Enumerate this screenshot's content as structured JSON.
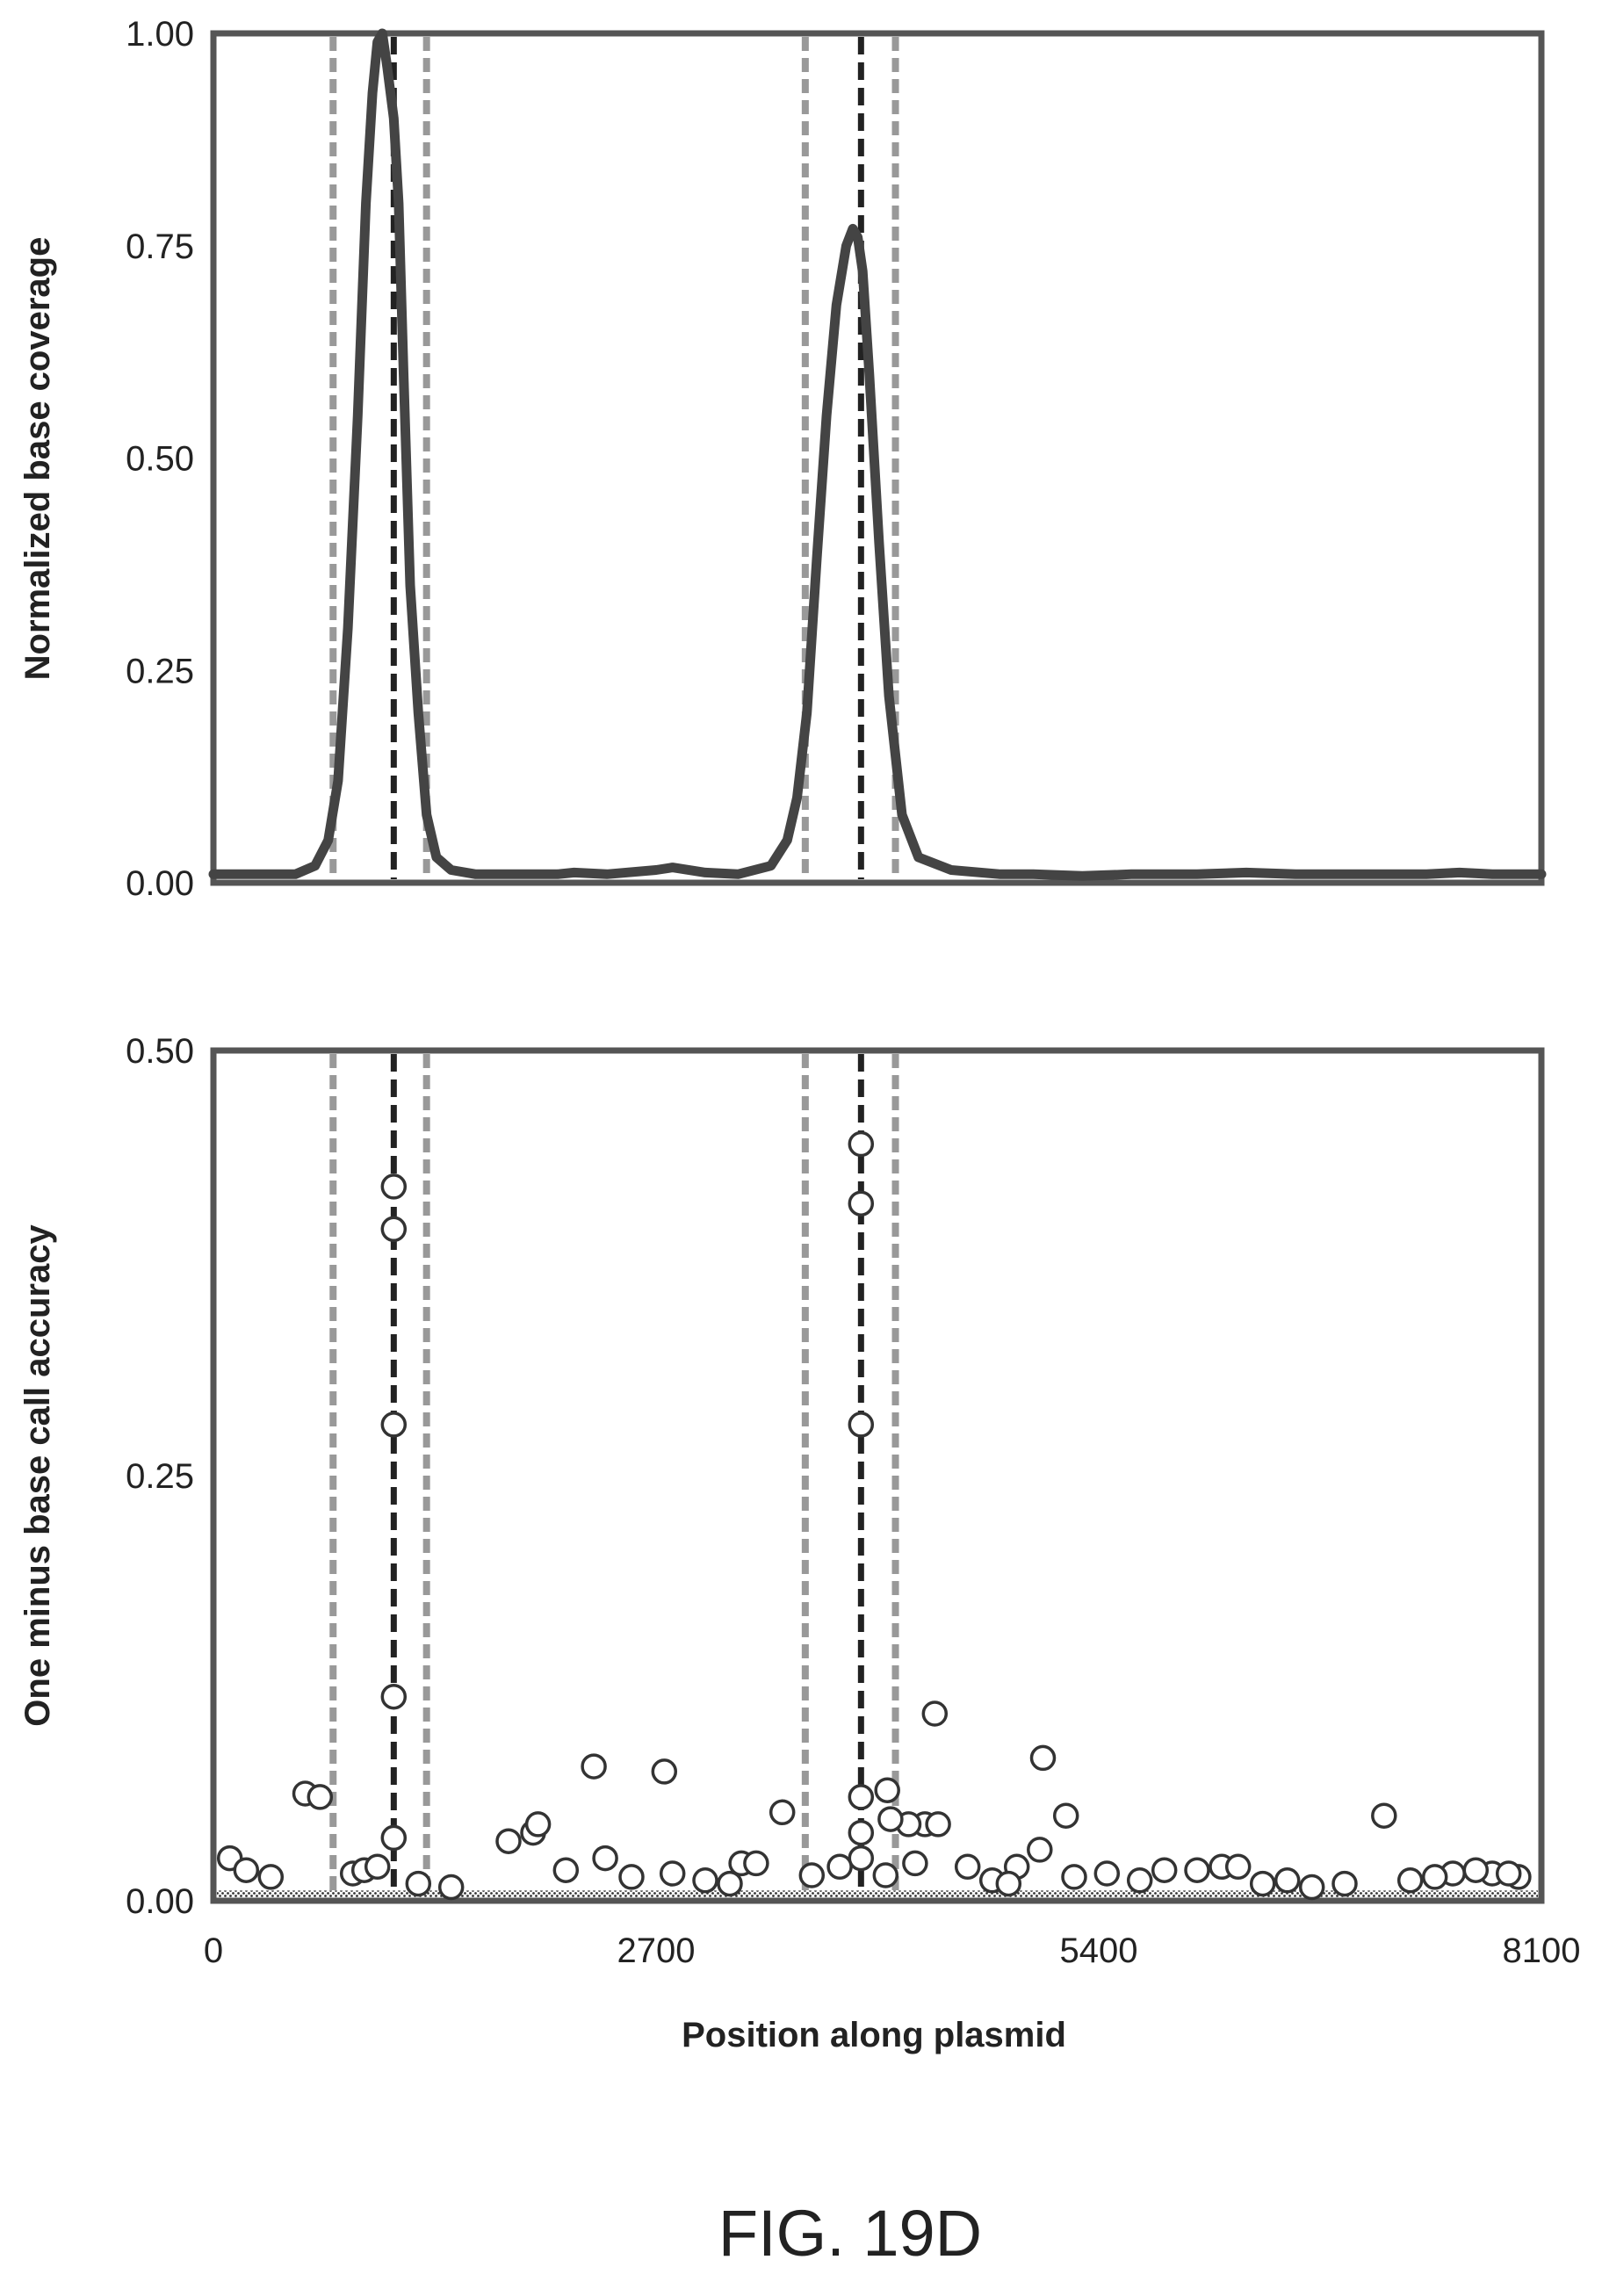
{
  "figure": {
    "caption": "FIG. 19D"
  },
  "chart_data": [
    {
      "type": "line",
      "xlabel": "",
      "ylabel": "Normalized base coverage",
      "xlim": [
        0,
        8100
      ],
      "ylim": [
        0,
        1.0
      ],
      "yticks": [
        "0.00",
        "0.25",
        "0.50",
        "0.75",
        "1.00"
      ],
      "grid": false,
      "markers": {
        "outer_boundaries": [
          730,
          1300,
          3610,
          4160
        ],
        "inner_boundaries": [
          1100,
          3950
        ]
      },
      "series": [
        {
          "x": [
            0,
            300,
            500,
            620,
            700,
            760,
            820,
            880,
            930,
            970,
            1000,
            1030,
            1060,
            1100,
            1130,
            1160,
            1200,
            1250,
            1300,
            1360,
            1450,
            1600,
            1800,
            2100,
            2200,
            2400,
            2700,
            2800,
            3000,
            3200,
            3400,
            3500,
            3560,
            3620,
            3680,
            3740,
            3800,
            3860,
            3900,
            3930,
            3960,
            4000,
            4060,
            4120,
            4200,
            4300,
            4500,
            4800,
            5000,
            5300,
            5600,
            6000,
            6300,
            6600,
            7000,
            7400,
            7600,
            7800,
            8100
          ],
          "y": [
            0.01,
            0.01,
            0.01,
            0.02,
            0.05,
            0.12,
            0.3,
            0.55,
            0.8,
            0.93,
            0.99,
            1.0,
            0.96,
            0.9,
            0.8,
            0.6,
            0.35,
            0.2,
            0.08,
            0.03,
            0.015,
            0.01,
            0.01,
            0.01,
            0.012,
            0.01,
            0.015,
            0.018,
            0.012,
            0.01,
            0.02,
            0.05,
            0.1,
            0.2,
            0.38,
            0.55,
            0.68,
            0.75,
            0.77,
            0.76,
            0.72,
            0.6,
            0.4,
            0.22,
            0.08,
            0.03,
            0.015,
            0.01,
            0.01,
            0.008,
            0.01,
            0.01,
            0.012,
            0.01,
            0.01,
            0.01,
            0.012,
            0.01,
            0.01
          ]
        }
      ]
    },
    {
      "type": "scatter",
      "xlabel": "Position along plasmid",
      "ylabel": "One minus base call accuracy",
      "xlim": [
        0,
        8100
      ],
      "ylim": [
        0,
        0.5
      ],
      "xticks": [
        "0",
        "2700",
        "5400",
        "8100"
      ],
      "yticks": [
        "0.00",
        "0.25",
        "0.50"
      ],
      "grid": false,
      "markers": {
        "outer_boundaries": [
          730,
          1300,
          3610,
          4160
        ],
        "inner_boundaries": [
          1100,
          3950
        ]
      },
      "series": [
        {
          "x": [
            1100,
            1100,
            1100,
            1100,
            1100,
            3950,
            3950,
            3950,
            3950,
            3950,
            3950,
            4400,
            5060,
            2320,
            2750,
            560,
            650,
            3470,
            4110,
            4340,
            4240,
            4130,
            4420,
            5200,
            5040,
            1800,
            1950,
            1980,
            2390,
            3220,
            3310,
            7140,
            4280,
            4100,
            4900,
            6150,
            6250,
            5800,
            6000,
            7560,
            7800,
            7960,
            100,
            200,
            350,
            850,
            920,
            1000,
            1250,
            1450,
            2150,
            2550,
            2800,
            3000,
            3150,
            3650,
            3820,
            4600,
            4750,
            4850,
            5250,
            5450,
            5650,
            6400,
            6550,
            6700,
            6900,
            7300,
            7450,
            7700,
            7900
          ],
          "y": [
            0.42,
            0.395,
            0.28,
            0.12,
            0.037,
            0.445,
            0.41,
            0.28,
            0.061,
            0.04,
            0.025,
            0.11,
            0.084,
            0.079,
            0.076,
            0.063,
            0.061,
            0.052,
            0.065,
            0.045,
            0.045,
            0.048,
            0.045,
            0.05,
            0.03,
            0.035,
            0.04,
            0.045,
            0.025,
            0.022,
            0.022,
            0.05,
            0.022,
            0.015,
            0.02,
            0.02,
            0.02,
            0.018,
            0.018,
            0.016,
            0.016,
            0.014,
            0.025,
            0.018,
            0.014,
            0.016,
            0.018,
            0.02,
            0.01,
            0.008,
            0.018,
            0.014,
            0.016,
            0.012,
            0.01,
            0.015,
            0.02,
            0.02,
            0.012,
            0.01,
            0.014,
            0.016,
            0.012,
            0.01,
            0.012,
            0.008,
            0.01,
            0.012,
            0.014,
            0.018,
            0.016
          ]
        }
      ]
    }
  ]
}
